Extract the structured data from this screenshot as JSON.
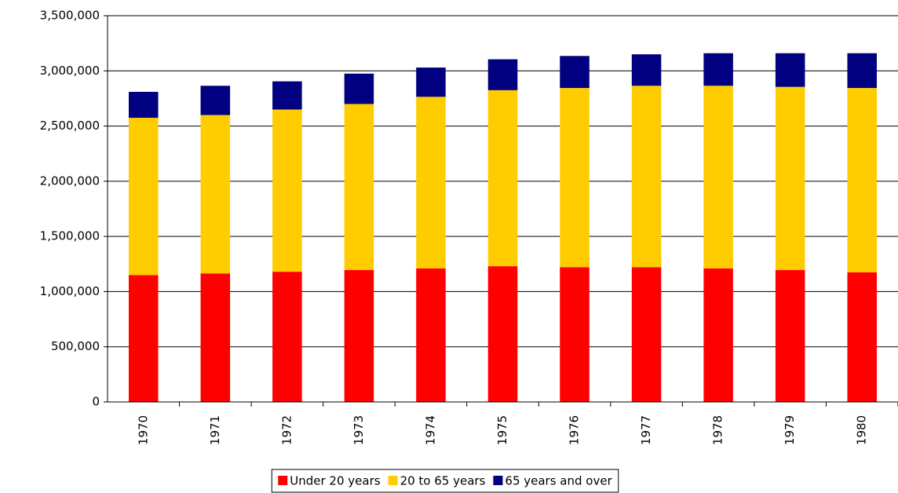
{
  "chart_data": {
    "type": "stacked_bar",
    "categories": [
      "1970",
      "1971",
      "1972",
      "1973",
      "1974",
      "1975",
      "1976",
      "1977",
      "1978",
      "1979",
      "1980"
    ],
    "series": [
      {
        "name": "Under 20 years",
        "color": "#ff0000",
        "values": [
          1150000,
          1165000,
          1180000,
          1195000,
          1210000,
          1230000,
          1220000,
          1220000,
          1210000,
          1195000,
          1175000
        ]
      },
      {
        "name": "20 to 65 years",
        "color": "#ffcc00",
        "values": [
          1425000,
          1435000,
          1470000,
          1505000,
          1555000,
          1595000,
          1625000,
          1645000,
          1655000,
          1660000,
          1670000
        ]
      },
      {
        "name": "65 years and over",
        "color": "#000080",
        "values": [
          235000,
          265000,
          255000,
          275000,
          265000,
          280000,
          290000,
          285000,
          295000,
          305000,
          315000
        ]
      }
    ],
    "ylim": [
      0,
      3500000
    ],
    "yticks": [
      0,
      {
        "value": 500000,
        "label": "500,000"
      },
      {
        "value": 1000000,
        "label": "1,000,000"
      },
      {
        "value": 1500000,
        "label": "1,500,000"
      },
      {
        "value": 2000000,
        "label": "2,000,000"
      },
      {
        "value": 2500000,
        "label": "2,500,000"
      },
      {
        "value": 3000000,
        "label": "3,000,000"
      },
      {
        "value": 3500000,
        "label": "3,500,000"
      }
    ],
    "grid": true,
    "legend": "bottom"
  }
}
